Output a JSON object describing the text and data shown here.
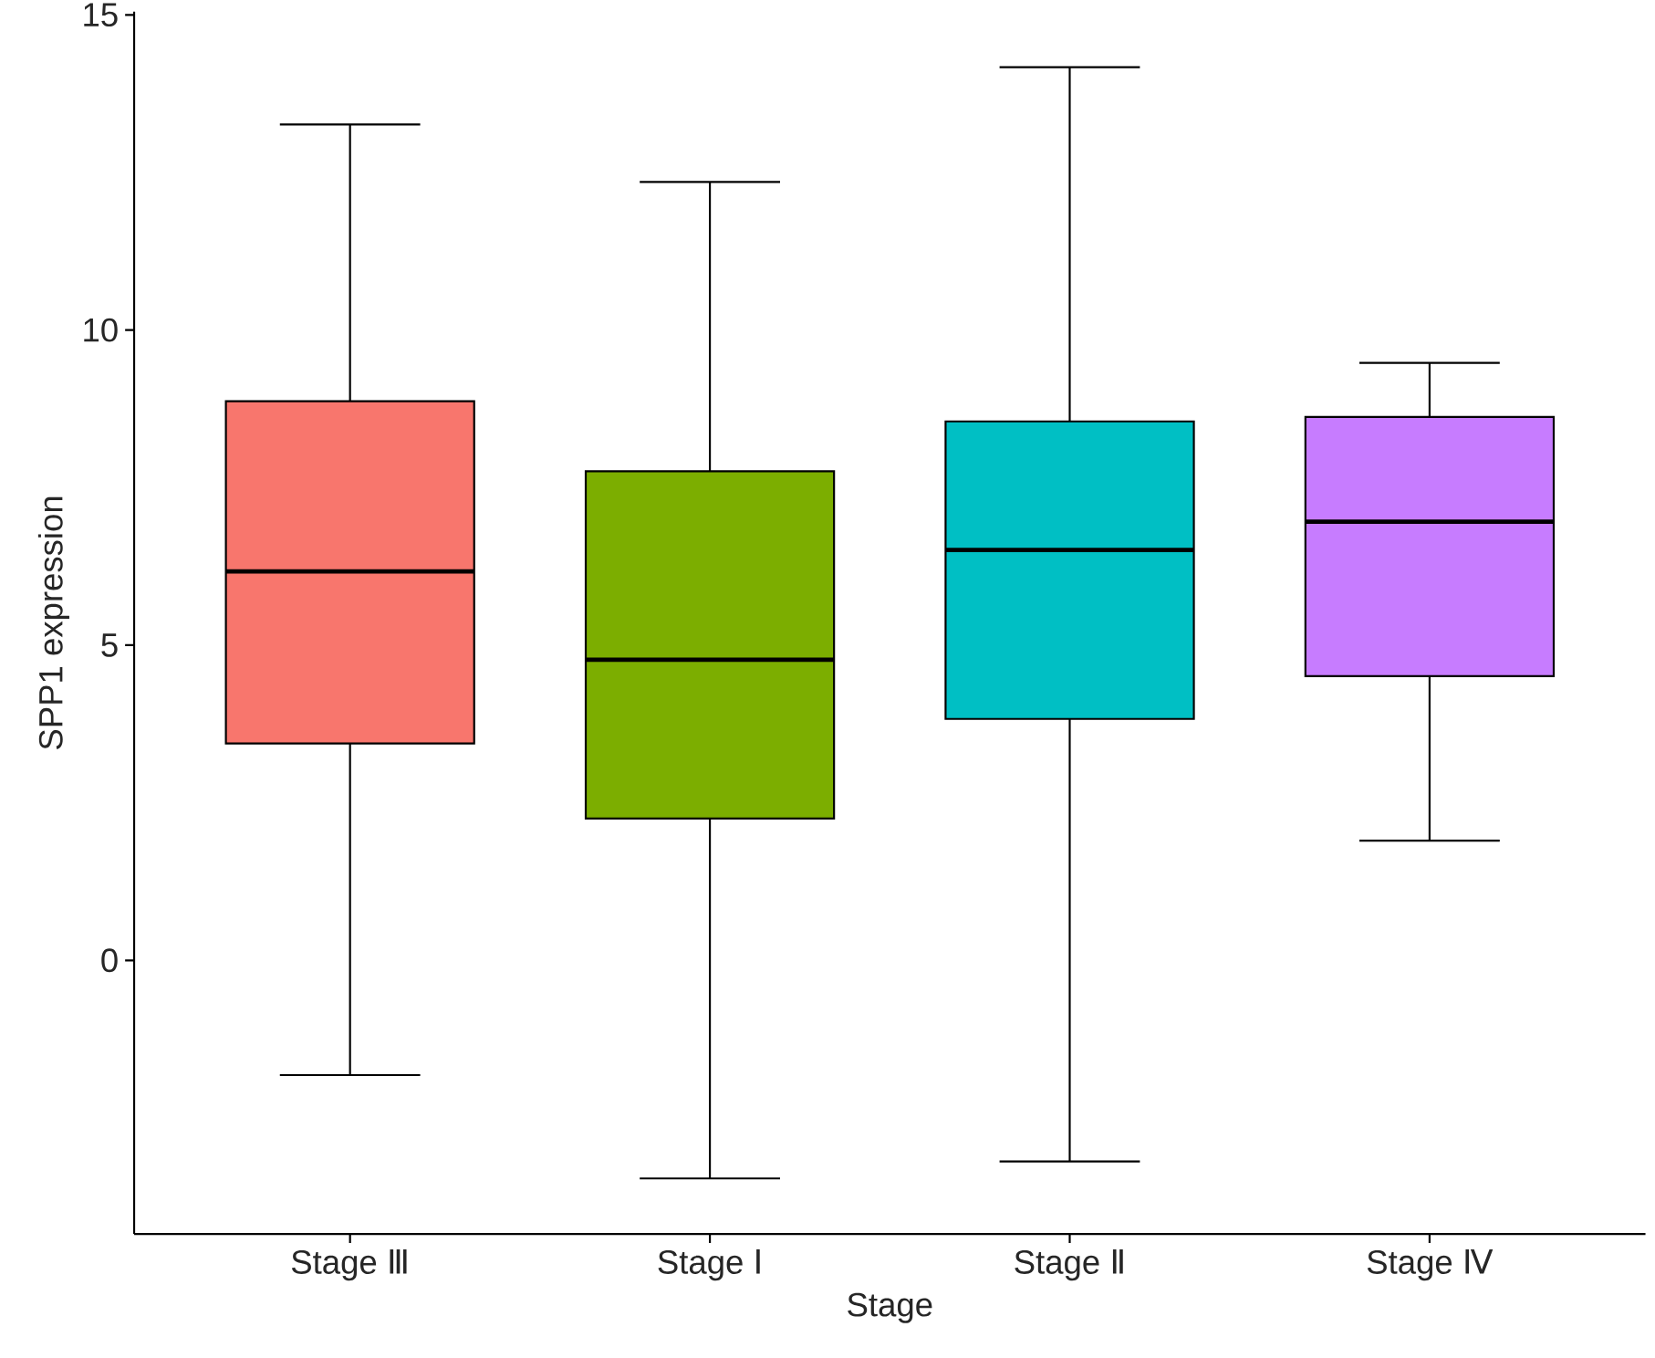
{
  "chart_data": {
    "type": "box",
    "xlabel": "Stage",
    "ylabel": "SPP1 expression",
    "categories": [
      "Stage Ⅲ",
      "Stage Ⅰ",
      "Stage Ⅱ",
      "Stage Ⅳ"
    ],
    "boxes": [
      {
        "low": -1.82,
        "q1": 3.44,
        "median": 6.17,
        "q3": 8.87,
        "high": 13.26
      },
      {
        "low": -3.46,
        "q1": 2.25,
        "median": 4.77,
        "q3": 7.76,
        "high": 12.35
      },
      {
        "low": -3.19,
        "q1": 3.83,
        "median": 6.51,
        "q3": 8.55,
        "high": 14.17
      },
      {
        "low": 1.9,
        "q1": 4.51,
        "median": 6.96,
        "q3": 8.62,
        "high": 9.48
      }
    ],
    "colors": [
      "#f8766d",
      "#7cae00",
      "#00bfc4",
      "#c77cff"
    ],
    "ylim": [
      -4.34,
      15.05
    ],
    "yticks": [
      0,
      5,
      10,
      15
    ]
  }
}
